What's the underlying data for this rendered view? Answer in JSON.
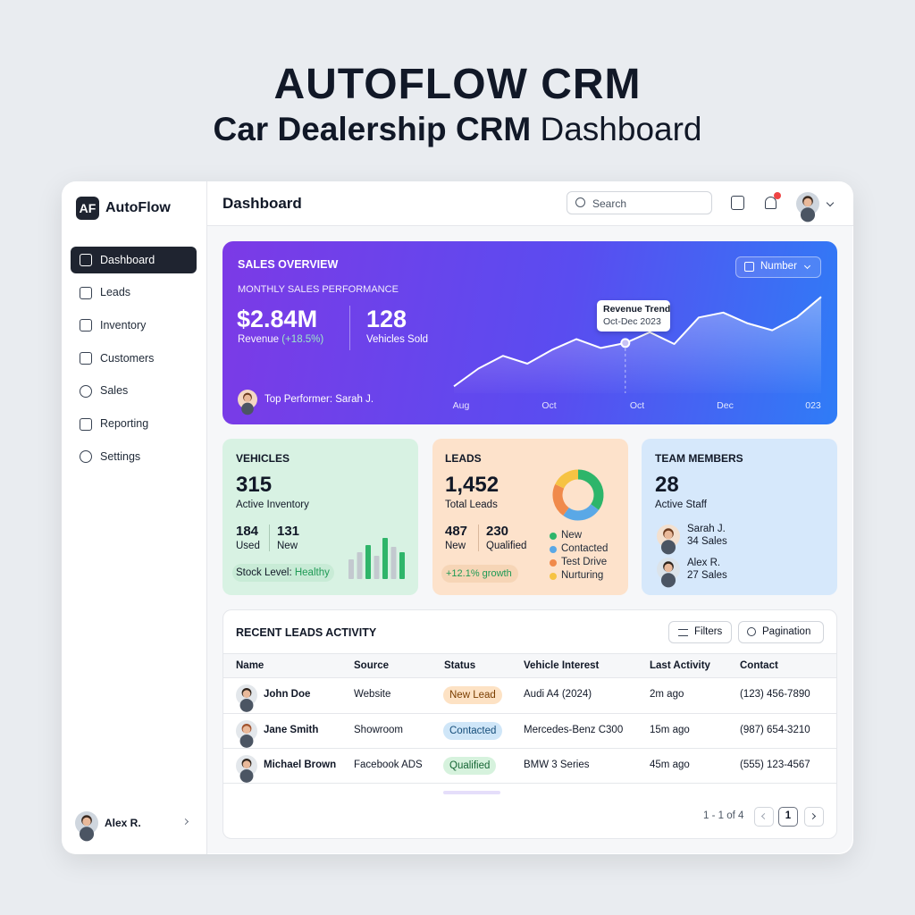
{
  "header": {
    "title": "AUTOFLOW CRM",
    "subtitle_bold": "Car Dealership CRM",
    "subtitle_light": "Dashboard"
  },
  "sidebar": {
    "logo": "AF",
    "brand": "AutoFlow",
    "nav": [
      "Dashboard",
      "Leads",
      "Inventory",
      "Customers",
      "Sales",
      "Reporting",
      "Settings"
    ],
    "user": "Alex R."
  },
  "topbar": {
    "title": "Dashboard",
    "search": "Search"
  },
  "sales_overview": {
    "title": "SALES OVERVIEW",
    "subtitle": "MONTHLY SALES PERFORMANCE",
    "dropdown": "Number",
    "revenue": "$2.84M",
    "revenue_label": "Revenue",
    "revenue_change": "(+18.5%)",
    "vehicles_sold": "128",
    "vehicles_sold_label": "Vehicles Sold",
    "top_performer": "Top Performer: Sarah J.",
    "tooltip": {
      "title": "Revenue Trend",
      "subtitle": "Oct-Dec 2023"
    },
    "x_labels": [
      "Aug",
      "Oct",
      "Oct",
      "Dec",
      "023"
    ],
    "trend": {
      "values": [
        7,
        25,
        38,
        30,
        44,
        55,
        46,
        51,
        62,
        50,
        77,
        82,
        71,
        64,
        77,
        98
      ],
      "ylim": [
        0,
        100
      ]
    }
  },
  "vehicles": {
    "title": "VEHICLES",
    "total": "315",
    "total_label": "Active Inventory",
    "used": "184",
    "used_label": "Used",
    "new": "131",
    "new_label": "New",
    "stock_label": "Stock Level:",
    "stock_status": "Healthy",
    "bars": [
      22,
      30,
      38,
      26,
      46,
      36,
      30
    ],
    "bar_colors": [
      "#c3c9cf",
      "#c3c9cf",
      "#2fb56a",
      "#c3c9cf",
      "#2fb56a",
      "#c3c9cf",
      "#2fb56a"
    ]
  },
  "leads": {
    "title": "LEADS",
    "total": "1,452",
    "total_label": "Total Leads",
    "new": "487",
    "new_label": "New",
    "qualified": "230",
    "qualified_label": "Qualified",
    "growth": "+12.1% growth",
    "segments": [
      {
        "name": "New",
        "value": 35,
        "color": "#2db56a"
      },
      {
        "name": "Contacted",
        "value": 25,
        "color": "#5aa8e6"
      },
      {
        "name": "Test Drive",
        "value": 22,
        "color": "#f08a4b"
      },
      {
        "name": "Nurturing",
        "value": 18,
        "color": "#f6c343"
      }
    ]
  },
  "team": {
    "title": "TEAM MEMBERS",
    "total": "28",
    "total_label": "Active Staff",
    "members": [
      {
        "name": "Sarah J.",
        "sales": "34 Sales"
      },
      {
        "name": "Alex R.",
        "sales": "27 Sales"
      }
    ]
  },
  "table": {
    "title": "RECENT LEADS ACTIVITY",
    "buttons": [
      "Filters",
      "Pagination"
    ],
    "columns": [
      "Name",
      "Source",
      "Status",
      "Vehicle Interest",
      "Last Activity",
      "Contact"
    ],
    "rows": [
      [
        "John Doe",
        "Website",
        "New Lead",
        "Audi A4 (2024)",
        "2m ago",
        "(123) 456-7890"
      ],
      [
        "Jane Smith",
        "Showroom",
        "Contacted",
        "Mercedes-Benz C300",
        "15m ago",
        "(987) 654-3210"
      ],
      [
        "Michael Brown",
        "Facebook ADS",
        "Qualified",
        "BMW 3 Series",
        "45m ago",
        "(555) 123-4567"
      ]
    ],
    "pagination": {
      "summary": "1 - 1 of 4",
      "page": "1"
    }
  }
}
